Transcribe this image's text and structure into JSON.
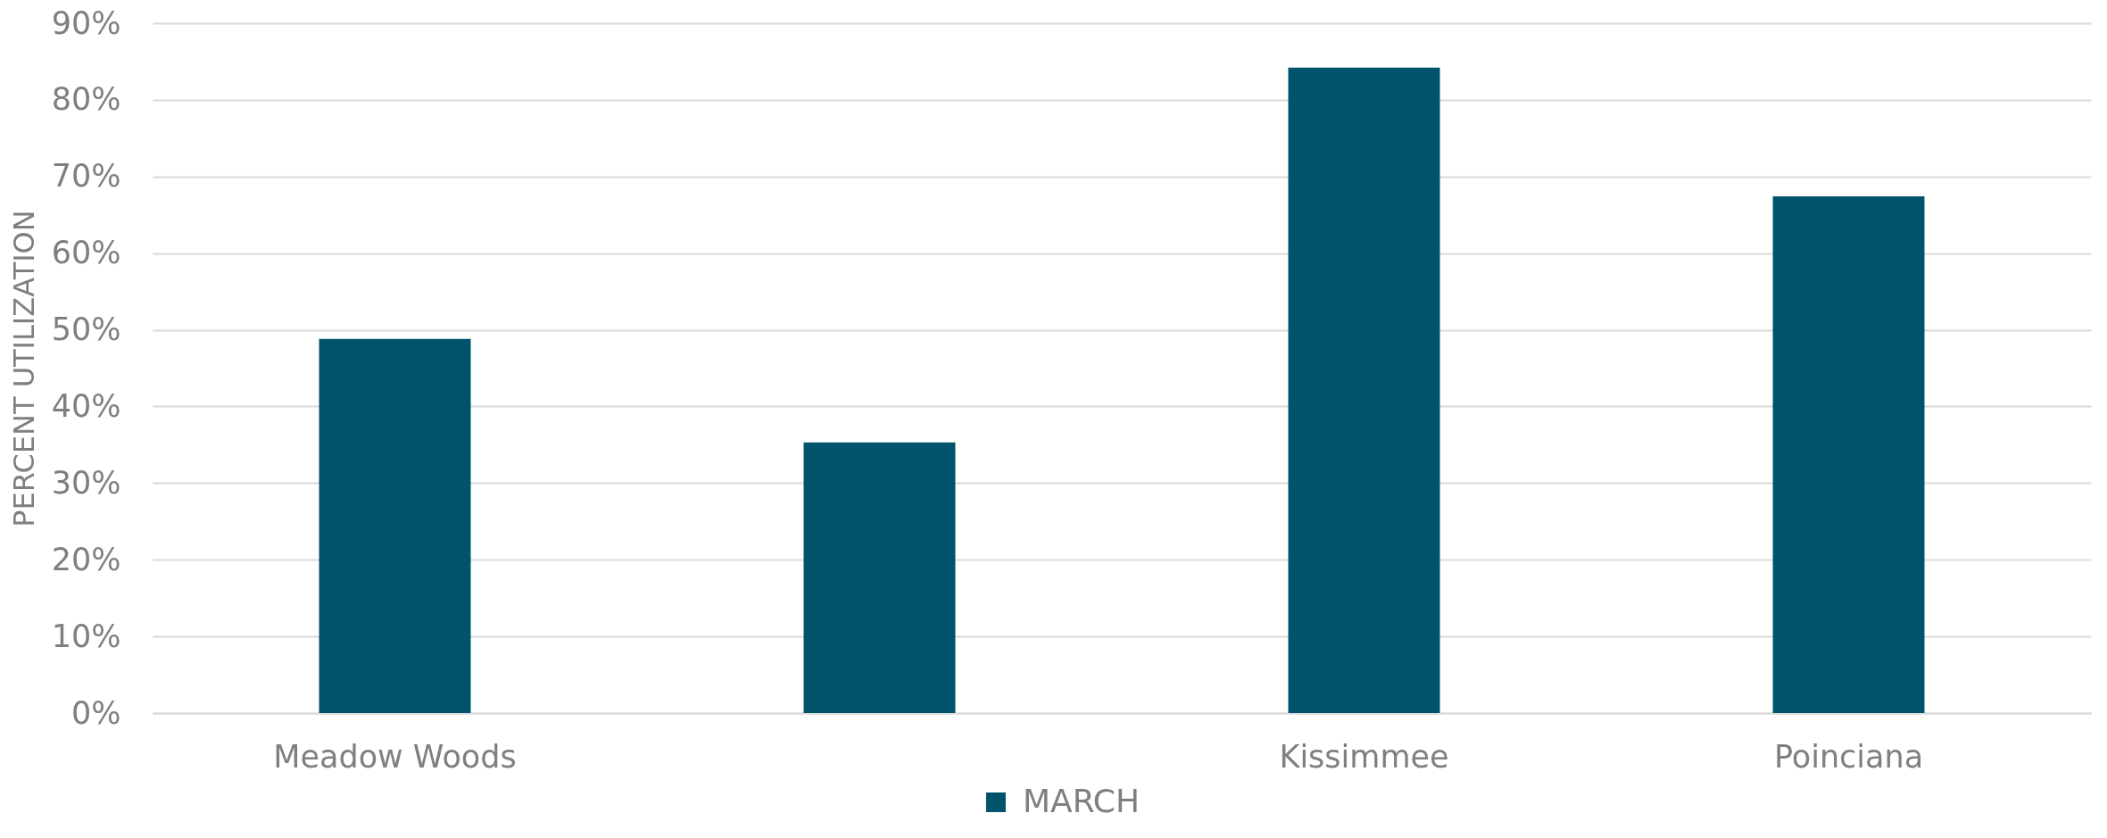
{
  "chart_data": {
    "type": "bar",
    "ylabel": "PERCENT UTILIZATION",
    "categories": [
      "Meadow Woods",
      null,
      "Kissimmee",
      "Poinciana"
    ],
    "series": [
      {
        "name": "MARCH",
        "color": "#00536a",
        "values": [
          48.8,
          35.3,
          84.2,
          67.4
        ]
      }
    ],
    "ylim": [
      0,
      90
    ],
    "yticks": [
      {
        "value": 0,
        "label": "0%"
      },
      {
        "value": 10,
        "label": "10%"
      },
      {
        "value": 20,
        "label": "20%"
      },
      {
        "value": 30,
        "label": "30%"
      },
      {
        "value": 40,
        "label": "40%"
      },
      {
        "value": 50,
        "label": "50%"
      },
      {
        "value": 60,
        "label": "60%"
      },
      {
        "value": 70,
        "label": "70%"
      },
      {
        "value": 80,
        "label": "80%"
      },
      {
        "value": 90,
        "label": "90%"
      }
    ],
    "grid": "y",
    "legend": "bottom"
  }
}
